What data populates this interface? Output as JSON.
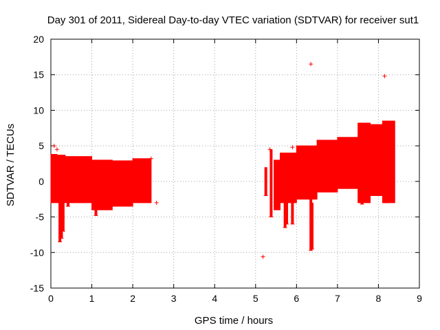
{
  "chart_data": {
    "type": "scatter",
    "title": "Day 301 of 2011, Sidereal Day-to-day VTEC variation (SDTVAR) for receiver sut1",
    "xlabel": "GPS time / hours",
    "ylabel": "SDTVAR / TECUs",
    "xlim": [
      0,
      9
    ],
    "ylim": [
      -15,
      20
    ],
    "grid": true,
    "legend": "none",
    "x_ticks": [
      "0",
      "1",
      "2",
      "3",
      "4",
      "5",
      "6",
      "7",
      "8",
      "9"
    ],
    "y_ticks": [
      "-15",
      "-10",
      "-5",
      "0",
      "5",
      "10",
      "15",
      "20"
    ],
    "series": [
      {
        "name": "sdtvar",
        "color": "#ff0000",
        "marker": "plus",
        "description": "dense band of points with error bars",
        "bands": [
          {
            "x_start": 0.0,
            "x_end": 0.15,
            "y_low": -3.0,
            "y_high": 3.8
          },
          {
            "x_start": 0.15,
            "x_end": 0.35,
            "y_low": -3.0,
            "y_high": 3.7
          },
          {
            "x_start": 0.35,
            "x_end": 1.0,
            "y_low": -3.0,
            "y_high": 3.5
          },
          {
            "x_start": 1.0,
            "x_end": 1.5,
            "y_low": -4.0,
            "y_high": 3.0
          },
          {
            "x_start": 1.5,
            "x_end": 2.0,
            "y_low": -3.5,
            "y_high": 2.9
          },
          {
            "x_start": 2.0,
            "x_end": 2.45,
            "y_low": -3.0,
            "y_high": 3.2
          },
          {
            "x_start": 5.45,
            "x_end": 5.6,
            "y_low": -4.0,
            "y_high": 3.0
          },
          {
            "x_start": 5.6,
            "x_end": 6.0,
            "y_low": -3.0,
            "y_high": 4.0
          },
          {
            "x_start": 6.0,
            "x_end": 6.5,
            "y_low": -2.5,
            "y_high": 5.0
          },
          {
            "x_start": 6.5,
            "x_end": 7.0,
            "y_low": -1.5,
            "y_high": 5.8
          },
          {
            "x_start": 7.0,
            "x_end": 7.5,
            "y_low": -1.0,
            "y_high": 6.2
          },
          {
            "x_start": 7.5,
            "x_end": 7.8,
            "y_low": -3.0,
            "y_high": 8.2
          },
          {
            "x_start": 7.8,
            "x_end": 8.1,
            "y_low": -2.0,
            "y_high": 8.0
          },
          {
            "x_start": 8.1,
            "x_end": 8.4,
            "y_low": -3.0,
            "y_high": 8.5
          }
        ],
        "spikes": [
          {
            "x": 0.22,
            "y_low": -8.5,
            "y_high": 0
          },
          {
            "x": 0.26,
            "y_low": -8.0,
            "y_high": 0
          },
          {
            "x": 0.3,
            "y_low": -7.0,
            "y_high": 0
          },
          {
            "x": 0.42,
            "y_low": -3.5,
            "y_high": -2.5
          },
          {
            "x": 1.1,
            "y_low": -4.8,
            "y_high": -3.5
          },
          {
            "x": 5.25,
            "y_low": -2.0,
            "y_high": 2.0
          },
          {
            "x": 5.38,
            "y_low": -5.0,
            "y_high": 4.5
          },
          {
            "x": 5.72,
            "y_low": -6.5,
            "y_high": -2.0
          },
          {
            "x": 5.76,
            "y_low": -6.0,
            "y_high": -2.0
          },
          {
            "x": 5.9,
            "y_low": -6.0,
            "y_high": -3.0
          },
          {
            "x": 6.35,
            "y_low": -9.7,
            "y_high": -2.0
          },
          {
            "x": 6.38,
            "y_low": -9.5,
            "y_high": -3.0
          },
          {
            "x": 7.6,
            "y_low": -3.2,
            "y_high": -1.0
          },
          {
            "x": 8.2,
            "y_low": -3.0,
            "y_high": -1.0
          }
        ],
        "points": [
          {
            "x": 0.08,
            "y": 5.0
          },
          {
            "x": 0.15,
            "y": 4.5
          },
          {
            "x": 2.45,
            "y": 3.2
          },
          {
            "x": 2.58,
            "y": -3.0
          },
          {
            "x": 5.18,
            "y": -10.6
          },
          {
            "x": 5.35,
            "y": 4.5
          },
          {
            "x": 5.9,
            "y": 4.8
          },
          {
            "x": 6.35,
            "y": 16.5
          },
          {
            "x": 8.15,
            "y": 14.8
          }
        ]
      }
    ]
  }
}
